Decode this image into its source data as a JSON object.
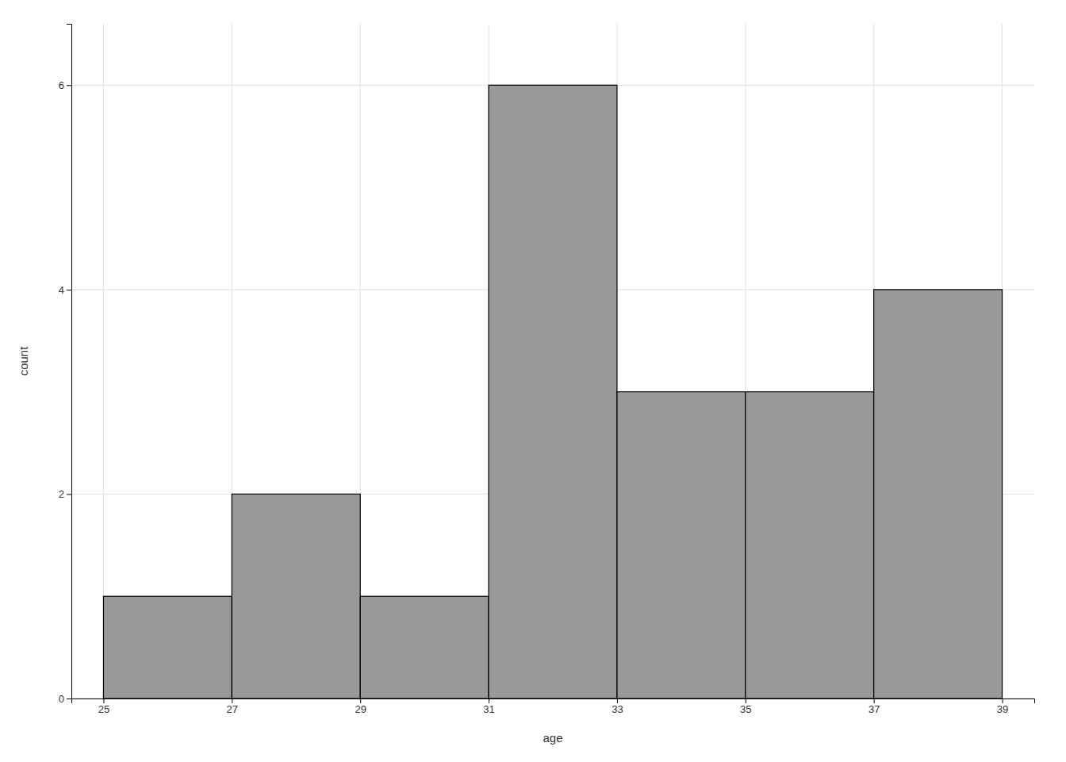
{
  "chart_data": {
    "type": "histogram",
    "bins": [
      25,
      27,
      29,
      31,
      33,
      35,
      37,
      39
    ],
    "values": [
      1,
      2,
      1,
      6,
      3,
      3,
      4
    ],
    "color": "#999999",
    "xlabel": "age",
    "ylabel": "count",
    "xlim": [
      24.5,
      39.5
    ],
    "ylim": [
      0,
      6.6
    ],
    "xticks": [
      25,
      27,
      29,
      31,
      33,
      35,
      37,
      39
    ],
    "yticks": [
      0,
      2,
      4,
      6
    ],
    "grid": true
  }
}
